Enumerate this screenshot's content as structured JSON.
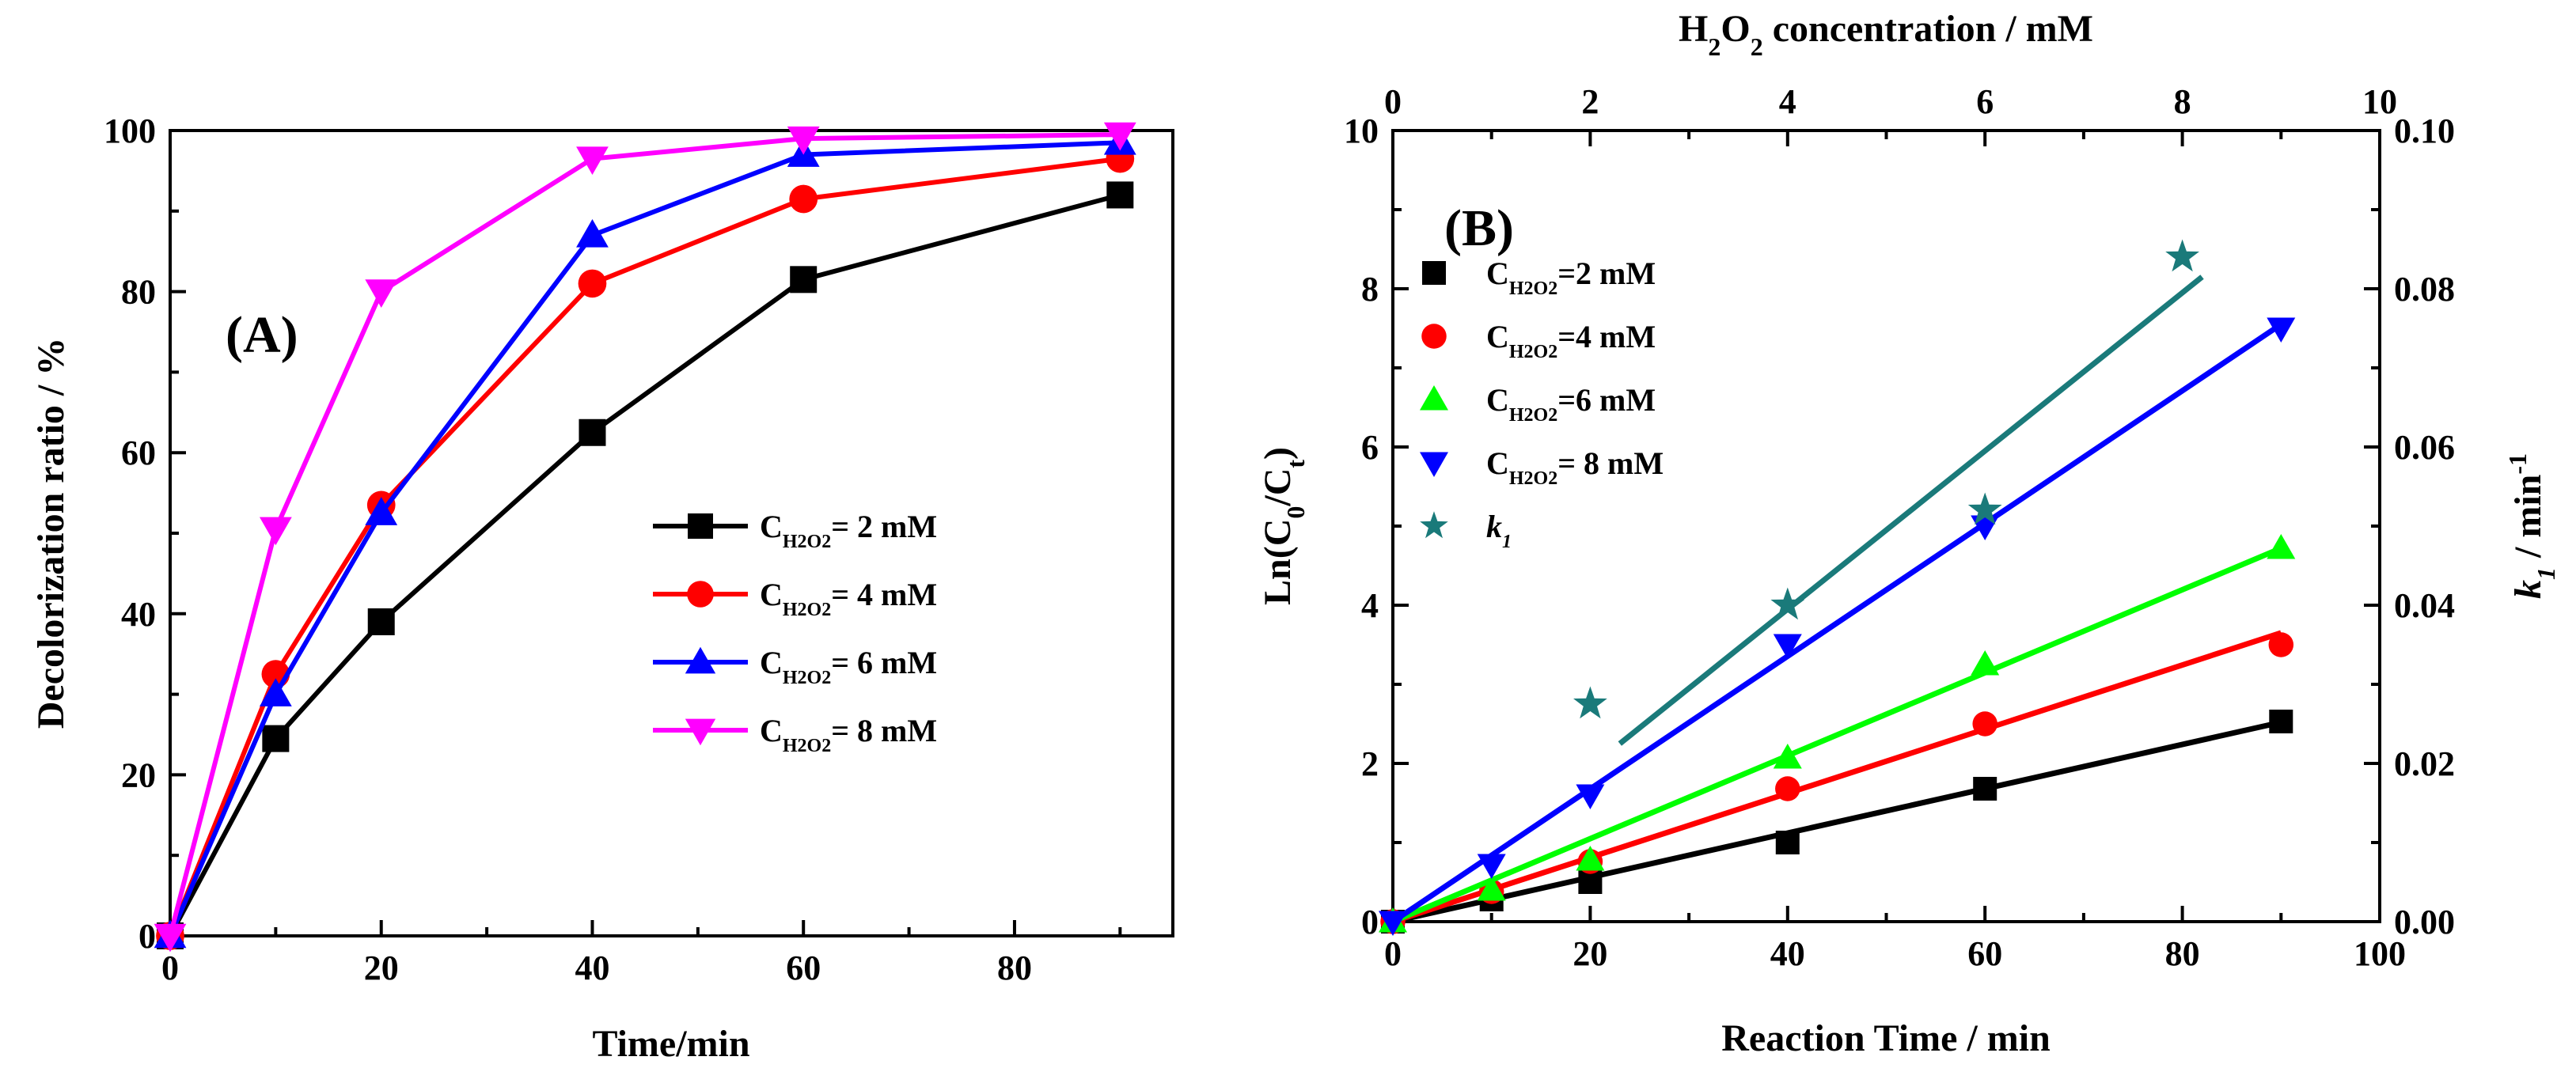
{
  "chart_data": [
    {
      "panel": "(A)",
      "type": "line",
      "xlabel": "Time/min",
      "ylabel": "Decolorization ratio / %",
      "xlim": [
        0,
        95
      ],
      "ylim": [
        0,
        100
      ],
      "xticks": [
        0,
        20,
        40,
        60,
        80
      ],
      "yticks": [
        0,
        20,
        40,
        60,
        80,
        100
      ],
      "legend_position": "center-right",
      "series": [
        {
          "name": "C",
          "sub": "H2O2",
          "label": "= 2 mM",
          "color": "#000000",
          "marker": "square",
          "x": [
            0,
            10,
            20,
            40,
            60,
            90
          ],
          "y": [
            0,
            24.5,
            39,
            62.5,
            81.5,
            92
          ]
        },
        {
          "name": "C",
          "sub": "H2O2",
          "label": "= 4 mM",
          "color": "#ff0000",
          "marker": "circle",
          "x": [
            0,
            10,
            20,
            40,
            60,
            90
          ],
          "y": [
            0,
            32.5,
            53.5,
            81,
            91.5,
            96.5
          ]
        },
        {
          "name": "C",
          "sub": "H2O2",
          "label": "= 6 mM",
          "color": "#0000ff",
          "marker": "triangle-up",
          "x": [
            0,
            10,
            20,
            40,
            60,
            90
          ],
          "y": [
            0,
            30,
            52.5,
            87,
            97,
            98.5
          ]
        },
        {
          "name": "C",
          "sub": "H2O2",
          "label": "= 8 mM",
          "color": "#ff00ff",
          "marker": "triangle-down",
          "x": [
            0,
            10,
            20,
            40,
            60,
            90
          ],
          "y": [
            0,
            50.5,
            80,
            96.5,
            99,
            99.5
          ]
        }
      ]
    },
    {
      "panel": "(B)",
      "type": "scatter",
      "xlabel": "Reaction Time / min",
      "ylabel": "Ln(C0/Ct)",
      "top_xlabel": "H2O2 concentration / mM",
      "right_ylabel": "k1 / min-1",
      "xlim": [
        0,
        100
      ],
      "ylim": [
        0,
        10
      ],
      "top_xlim": [
        0,
        10
      ],
      "right_ylim": [
        0,
        0.1
      ],
      "xticks": [
        0,
        20,
        40,
        60,
        80,
        100
      ],
      "yticks": [
        0,
        2,
        4,
        6,
        8,
        10
      ],
      "top_xticks": [
        0,
        2,
        4,
        6,
        8,
        10
      ],
      "right_yticks": [
        "0.00",
        "0.02",
        "0.04",
        "0.06",
        "0.08",
        "0.10"
      ],
      "legend_position": "top-left",
      "series": [
        {
          "name": "C",
          "sub": "H2O2",
          "label": "=2 mM",
          "color": "#000000",
          "marker": "square",
          "x": [
            0,
            10,
            20,
            40,
            60,
            90
          ],
          "y": [
            0,
            0.28,
            0.5,
            1.0,
            1.68,
            2.53
          ],
          "fit": [
            0,
            2.52
          ]
        },
        {
          "name": "C",
          "sub": "H2O2",
          "label": "=4 mM",
          "color": "#ff0000",
          "marker": "circle",
          "x": [
            0,
            10,
            20,
            40,
            60,
            90
          ],
          "y": [
            0,
            0.38,
            0.76,
            1.68,
            2.5,
            3.5
          ],
          "fit": [
            0,
            3.65
          ]
        },
        {
          "name": "C",
          "sub": "H2O2",
          "label": "=6 mM",
          "color": "#00ff00",
          "marker": "triangle-up",
          "x": [
            0,
            10,
            20,
            40,
            60,
            90
          ],
          "y": [
            0,
            0.4,
            0.78,
            2.07,
            3.25,
            4.72
          ],
          "fit": [
            0,
            4.72
          ]
        },
        {
          "name": "C",
          "sub": "H2O2",
          "label": "= 8 mM",
          "color": "#0000ff",
          "marker": "triangle-down",
          "x": [
            0,
            10,
            20,
            40,
            60,
            90
          ],
          "y": [
            0,
            0.72,
            1.6,
            3.5,
            5.0,
            7.5
          ],
          "fit": [
            0,
            7.55
          ]
        },
        {
          "name": "k",
          "sub": "1",
          "label": "",
          "color": "#1a7a7a",
          "marker": "star",
          "axis": "top-right",
          "x": [
            2,
            4,
            6,
            8
          ],
          "y": [
            0.0275,
            0.04,
            0.052,
            0.084
          ],
          "fit_x": [
            2.3,
            8.2
          ],
          "fit_y": [
            0.0225,
            0.0815
          ]
        }
      ]
    }
  ]
}
